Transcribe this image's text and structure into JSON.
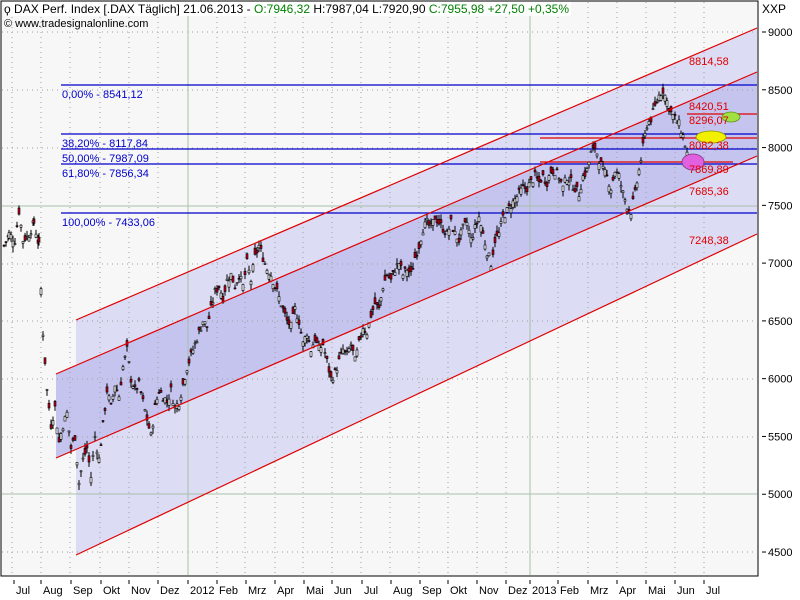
{
  "header": {
    "symbol_icon": "candlestick-icon",
    "instrument": "DAX Perf. Index [.DAX  Täglich]",
    "date": "21.06.2013",
    "separator": "-",
    "open": "O:7946,32",
    "high": "H:7987,04",
    "low": "L:7920,90",
    "close": "C:7955,98",
    "change": "+27,50",
    "change_pct": "+0,35%",
    "positive_color": "#008000"
  },
  "copyright": {
    "icon": "copyright-icon",
    "text": "www.tradesignalonline.com"
  },
  "y_axis": {
    "unit": "XXP",
    "ticks": [
      "9000",
      "8500",
      "8000",
      "7500",
      "7000",
      "6500",
      "6000",
      "5500",
      "5000",
      "4500"
    ]
  },
  "x_axis": {
    "ticks": [
      "Jul",
      "Aug",
      "Sep",
      "Okt",
      "Nov",
      "Dez",
      "2012",
      "Feb",
      "Mrz",
      "Apr",
      "Mai",
      "Jun",
      "Jul",
      "Aug",
      "Sep",
      "Okt",
      "Nov",
      "Dez",
      "2013",
      "Feb",
      "Mrz",
      "Apr",
      "Mai",
      "Jun",
      "Jul"
    ]
  },
  "fibonacci": {
    "color": "#0000cc",
    "levels": [
      {
        "label": "0,00% - 8541,12",
        "pct": 0.0,
        "value": 8541.12
      },
      {
        "label": "38,20% - 8117,84",
        "pct": 38.2,
        "value": 8117.84
      },
      {
        "label": "50,00% - 7987,09",
        "pct": 50.0,
        "value": 7987.09
      },
      {
        "label": "61,80% - 7856,34",
        "pct": 61.8,
        "value": 7856.34
      },
      {
        "label": "100,00% - 7433,06",
        "pct": 100.0,
        "value": 7433.06
      }
    ]
  },
  "channel_labels": {
    "color": "#e00000",
    "items": [
      "8814,58",
      "8420,51",
      "8296,07",
      "8082,38",
      "7869,89",
      "7685,36",
      "7248,38"
    ]
  },
  "markers": {
    "green": "#a0e040",
    "yellow": "#f0f000",
    "magenta": "#e060e0"
  },
  "chart_data": {
    "type": "candlestick",
    "title": "DAX Perf. Index [.DAX Täglich] 21.06.2013",
    "xlabel": "",
    "ylabel": "XXP",
    "ylim": [
      4300,
      9250
    ],
    "x_range": [
      "Jul 2011",
      "Jul 2013"
    ],
    "grid": true,
    "last_bar": {
      "date": "21.06.2013",
      "open": 7946.32,
      "high": 7987.04,
      "low": 7920.9,
      "close": 7955.98,
      "change": 27.5,
      "change_pct": 0.35
    },
    "approx_monthly_closes": {
      "x": [
        "Jul 2011",
        "Aug 2011",
        "Sep 2011",
        "Okt 2011",
        "Nov 2011",
        "Dez 2011",
        "Jan 2012",
        "Feb 2012",
        "Mrz 2012",
        "Apr 2012",
        "Mai 2012",
        "Jun 2012",
        "Jul 2012",
        "Aug 2012",
        "Sep 2012",
        "Okt 2012",
        "Nov 2012",
        "Dez 2012",
        "Jan 2013",
        "Feb 2013",
        "Mrz 2013",
        "Apr 2013",
        "Mai 2013",
        "Jun 2013"
      ],
      "values": [
        7300,
        5800,
        5500,
        6150,
        6000,
        5900,
        6450,
        6850,
        7000,
        6750,
        6300,
        6400,
        6750,
        6950,
        7250,
        7250,
        7400,
        7600,
        7800,
        7750,
        7800,
        7900,
        8350,
        7950
      ]
    },
    "fibonacci_retracement": [
      {
        "pct": 0.0,
        "value": 8541.12
      },
      {
        "pct": 38.2,
        "value": 8117.84
      },
      {
        "pct": 50.0,
        "value": 7987.09
      },
      {
        "pct": 61.8,
        "value": 7856.34
      },
      {
        "pct": 100.0,
        "value": 7433.06
      }
    ],
    "channel_levels_current": [
      8814.58,
      8420.51,
      7685.36,
      7248.38
    ],
    "horizontal_levels": [
      8296.07,
      8082.38,
      7869.89
    ],
    "annotations": [
      "green ellipse at 8296,07",
      "yellow ellipse at 8082,38",
      "magenta ellipse at 7869,89"
    ]
  }
}
